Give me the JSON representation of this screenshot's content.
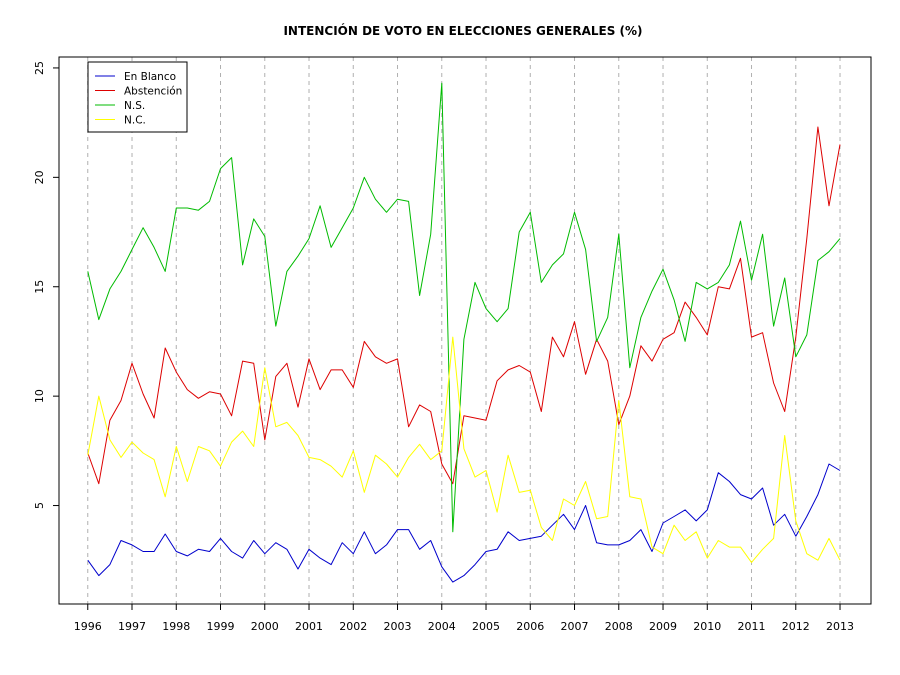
{
  "chart_data": {
    "type": "line",
    "title": "INTENCIÓN DE VOTO EN ELECCIONES GENERALES (%)",
    "xlabel": "",
    "ylabel": "",
    "xlim": [
      1995.35,
      2013.7
    ],
    "ylim": [
      0.5,
      25.5
    ],
    "x_ticks": [
      1996,
      1997,
      1998,
      1999,
      2000,
      2001,
      2002,
      2003,
      2004,
      2005,
      2006,
      2007,
      2008,
      2009,
      2010,
      2011,
      2012,
      2013
    ],
    "y_ticks": [
      5,
      10,
      15,
      20,
      25
    ],
    "grid": "vertical dashed at each year",
    "legend_position": "top-left",
    "x": [
      1996,
      1996.25,
      1996.5,
      1996.75,
      1997,
      1997.25,
      1997.5,
      1997.75,
      1998,
      1998.25,
      1998.5,
      1998.75,
      1999,
      1999.25,
      1999.5,
      1999.75,
      2000,
      2000.25,
      2000.5,
      2000.75,
      2001,
      2001.25,
      2001.5,
      2001.75,
      2002,
      2002.25,
      2002.5,
      2002.75,
      2003,
      2003.25,
      2003.5,
      2003.75,
      2004,
      2004.25,
      2004.5,
      2004.75,
      2005,
      2005.25,
      2005.5,
      2005.75,
      2006,
      2006.25,
      2006.5,
      2006.75,
      2007,
      2007.25,
      2007.5,
      2007.75,
      2008,
      2008.25,
      2008.5,
      2008.75,
      2009,
      2009.25,
      2009.5,
      2009.75,
      2010,
      2010.25,
      2010.5,
      2010.75,
      2011,
      2011.25,
      2011.5,
      2011.75,
      2012,
      2012.25,
      2012.5,
      2012.75,
      2013
    ],
    "series": [
      {
        "name": "En Blanco",
        "color": "#0000cc",
        "values": [
          2.5,
          1.8,
          2.3,
          3.4,
          3.2,
          2.9,
          2.9,
          3.7,
          2.9,
          2.7,
          3.0,
          2.9,
          3.5,
          2.9,
          2.6,
          3.4,
          2.8,
          3.3,
          3.0,
          2.1,
          3.0,
          2.6,
          2.3,
          3.3,
          2.8,
          3.8,
          2.8,
          3.2,
          3.9,
          3.9,
          3.0,
          3.4,
          2.2,
          1.5,
          1.8,
          2.3,
          2.9,
          3.0,
          3.8,
          3.4,
          3.5,
          3.6,
          4.1,
          4.6,
          3.9,
          5.0,
          3.3,
          3.2,
          3.2,
          3.4,
          3.9,
          2.9,
          4.2,
          4.5,
          4.8,
          4.3,
          4.8,
          6.5,
          6.1,
          5.5,
          5.3,
          5.8,
          4.1,
          4.6,
          3.6,
          4.5,
          5.5,
          6.9,
          6.6
        ]
      },
      {
        "name": "Abstención",
        "color": "#dd0000",
        "values": [
          7.4,
          6.0,
          8.9,
          9.8,
          11.5,
          10.1,
          9.0,
          12.2,
          11.1,
          10.3,
          9.9,
          10.2,
          10.1,
          9.1,
          11.6,
          11.5,
          8.0,
          10.9,
          11.5,
          9.5,
          11.7,
          10.3,
          11.2,
          11.2,
          10.4,
          12.5,
          11.8,
          11.5,
          11.7,
          8.6,
          9.6,
          9.3,
          6.9,
          6.0,
          9.1,
          9.0,
          8.9,
          10.7,
          11.2,
          11.4,
          11.1,
          9.3,
          12.7,
          11.8,
          13.4,
          11.0,
          12.6,
          11.6,
          8.7,
          10.0,
          12.3,
          11.6,
          12.6,
          12.9,
          14.3,
          13.6,
          12.8,
          15.0,
          14.9,
          16.3,
          12.7,
          12.9,
          10.6,
          9.3,
          12.7,
          17.2,
          22.3,
          18.7,
          21.5
        ]
      },
      {
        "name": "N.S.",
        "color": "#00bb00",
        "values": [
          15.7,
          13.5,
          14.9,
          15.7,
          16.7,
          17.7,
          16.8,
          15.7,
          18.6,
          18.6,
          18.5,
          18.9,
          20.4,
          20.9,
          16.0,
          18.1,
          17.3,
          13.2,
          15.7,
          16.4,
          17.2,
          18.7,
          16.8,
          17.7,
          18.6,
          20.0,
          19.0,
          18.4,
          19.0,
          18.9,
          14.6,
          17.4,
          24.3,
          3.8,
          12.6,
          15.2,
          14.0,
          13.4,
          14.0,
          17.5,
          18.4,
          15.2,
          16.0,
          16.5,
          18.4,
          16.7,
          12.5,
          13.6,
          17.4,
          11.3,
          13.6,
          14.8,
          15.8,
          14.4,
          12.5,
          15.2,
          14.9,
          15.2,
          16.0,
          18.0,
          15.3,
          17.4,
          13.2,
          15.4,
          11.8,
          12.8,
          16.2,
          16.6,
          17.2
        ]
      },
      {
        "name": "N.C.",
        "color": "#ffff00",
        "values": [
          7.3,
          10.0,
          8.0,
          7.2,
          7.9,
          7.4,
          7.1,
          5.4,
          7.7,
          6.1,
          7.7,
          7.5,
          6.8,
          7.9,
          8.4,
          7.7,
          11.3,
          8.6,
          8.8,
          8.2,
          7.2,
          7.1,
          6.8,
          6.3,
          7.5,
          5.6,
          7.3,
          6.9,
          6.3,
          7.2,
          7.8,
          7.1,
          7.5,
          12.7,
          7.6,
          6.3,
          6.6,
          4.7,
          7.3,
          5.6,
          5.7,
          4.0,
          3.4,
          5.3,
          5.0,
          6.1,
          4.4,
          4.5,
          9.8,
          5.4,
          5.3,
          3.1,
          2.8,
          4.1,
          3.4,
          3.8,
          2.6,
          3.4,
          3.1,
          3.1,
          2.4,
          3.0,
          3.5,
          8.2,
          4.3,
          2.8,
          2.5,
          3.5,
          2.5
        ]
      }
    ]
  }
}
